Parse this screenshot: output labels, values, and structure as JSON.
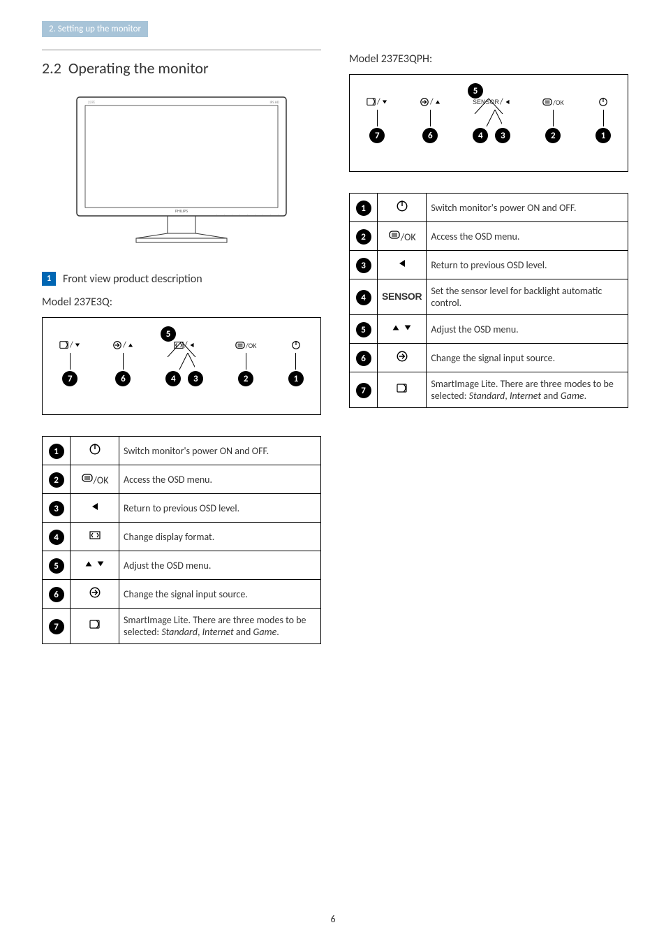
{
  "header_tab": "2. Setting up the monitor",
  "section_number": "2.2",
  "section_title": "Operating the monitor",
  "subsection_marker": "1",
  "subsection_title": "Front view product description",
  "model_a_title": "Model 237E3Q:",
  "model_b_title": "Model 237E3QPH:",
  "page_number": "6",
  "strip_q": {
    "items": [
      {
        "label_svg": "smartimage_down",
        "nums": [
          "7"
        ],
        "split": false
      },
      {
        "label_svg": "input_up",
        "nums": [
          "6"
        ],
        "split": false
      },
      {
        "label_svg": "format_left",
        "nums": [
          "4",
          "3"
        ],
        "split": true
      },
      {
        "label_svg": "menu_ok",
        "nums": [
          "2"
        ],
        "split": false
      },
      {
        "label_svg": "power",
        "nums": [
          "1"
        ],
        "split": false
      }
    ],
    "top_num": "5"
  },
  "strip_qph": {
    "items": [
      {
        "label_svg": "smartimage_down",
        "nums": [
          "7"
        ],
        "split": false
      },
      {
        "label_svg": "input_up",
        "nums": [
          "6"
        ],
        "split": false
      },
      {
        "label_svg": "sensor_left",
        "nums": [
          "4",
          "3"
        ],
        "split": true
      },
      {
        "label_svg": "menu_ok",
        "nums": [
          "2"
        ],
        "split": false
      },
      {
        "label_svg": "power",
        "nums": [
          "1"
        ],
        "split": false
      }
    ],
    "top_num": "5"
  },
  "table_q": [
    {
      "num": "1",
      "icon": "power",
      "text": "Switch monitor's power ON and OFF."
    },
    {
      "num": "2",
      "icon": "menu_ok",
      "text": "Access the OSD menu."
    },
    {
      "num": "3",
      "icon": "left",
      "text": "Return to previous OSD level."
    },
    {
      "num": "4",
      "icon": "format",
      "text": "Change display format."
    },
    {
      "num": "5",
      "icon": "updown",
      "text": "Adjust the OSD menu."
    },
    {
      "num": "6",
      "icon": "input",
      "text": "Change the signal input source."
    },
    {
      "num": "7",
      "icon": "smartimage",
      "text_html": "SmartImage Lite. There are three modes to be selected: <span class='italic'>Standard</span>, <span class='italic'>Internet</span> and <span class='italic'>Game</span>."
    }
  ],
  "table_qph": [
    {
      "num": "1",
      "icon": "power",
      "text": "Switch monitor's power ON and OFF."
    },
    {
      "num": "2",
      "icon": "menu_ok",
      "text": "Access the OSD menu."
    },
    {
      "num": "3",
      "icon": "left",
      "text": "Return to previous OSD level."
    },
    {
      "num": "4",
      "icon": "sensor",
      "text": "Set the sensor level for backlight automatic control."
    },
    {
      "num": "5",
      "icon": "updown",
      "text": "Adjust the OSD menu."
    },
    {
      "num": "6",
      "icon": "input",
      "text": "Change the signal input source."
    },
    {
      "num": "7",
      "icon": "smartimage",
      "text_html": "SmartImage Lite. There are three modes to be selected: <span class='italic'>Standard</span>, <span class='italic'>Internet</span> and <span class='italic'>Game</span>."
    }
  ]
}
